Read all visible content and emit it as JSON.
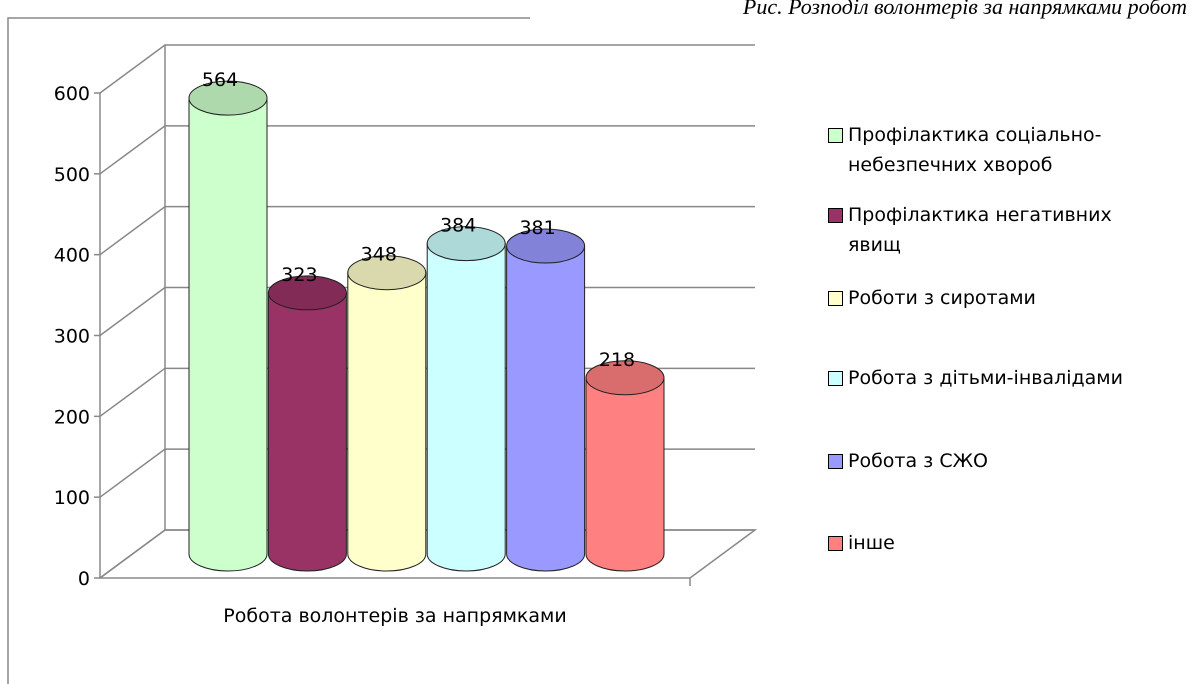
{
  "chart_data": {
    "type": "bar3d",
    "caption": "Рис. Розподіл волонтерів за напрямками робот",
    "categories": [
      "Робота волонтерів за напрямками"
    ],
    "series": [
      {
        "name": "Профілактика соціально-небезпечних хвороб",
        "color": "#ccffcc",
        "values": [
          564
        ]
      },
      {
        "name": "Профілактика негативних явищ",
        "color": "#993366",
        "values": [
          323
        ]
      },
      {
        "name": "Роботи з сиротами",
        "color": "#ffffcc",
        "values": [
          348
        ]
      },
      {
        "name": "Робота з дітьми-інвалідами",
        "color": "#ccffff",
        "values": [
          384
        ]
      },
      {
        "name": "Робота з СЖО",
        "color": "#9999ff",
        "values": [
          381
        ]
      },
      {
        "name": "інше",
        "color": "#ff8080",
        "values": [
          218
        ]
      }
    ],
    "ylim": [
      0,
      600
    ],
    "yticks": [
      0,
      100,
      200,
      300,
      400,
      500,
      600
    ],
    "grid": true,
    "legend": "right"
  }
}
